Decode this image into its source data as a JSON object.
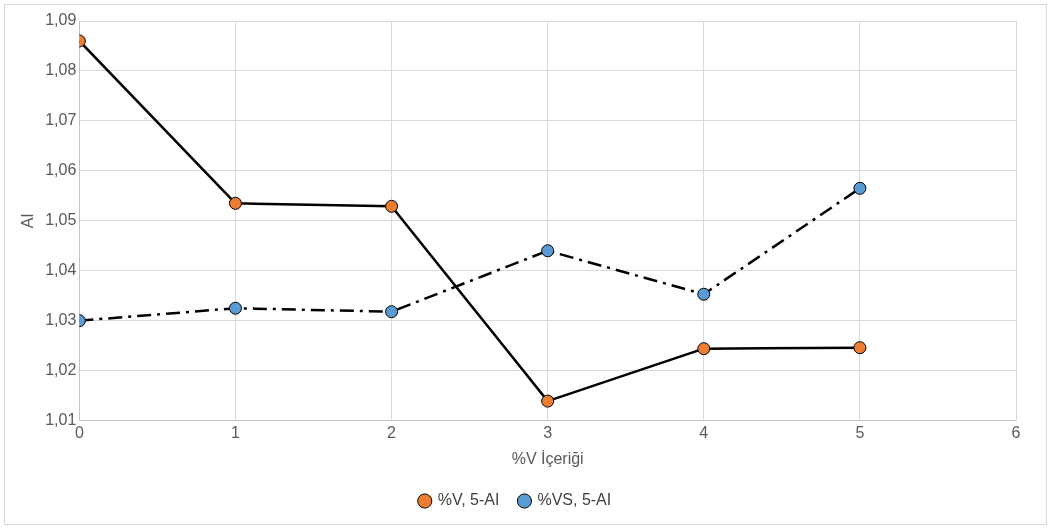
{
  "chart_data": {
    "type": "line",
    "xlabel": "%V İçeriği",
    "ylabel": "AI",
    "x": [
      0,
      1,
      2,
      3,
      4,
      5
    ],
    "series": [
      {
        "name": "%V, 5-AI",
        "color": "#ed7d31",
        "values": [
          1.086,
          1.0535,
          1.0529,
          1.0139,
          1.0244,
          1.0246
        ],
        "line_style": "solid"
      },
      {
        "name": "%VS, 5-AI",
        "color": "#5b9bd5",
        "values": [
          1.03,
          1.0325,
          1.0318,
          1.044,
          1.0353,
          1.0565
        ],
        "line_style": "dashed"
      }
    ],
    "xlim": [
      0,
      6
    ],
    "xticks": [
      0,
      1,
      2,
      3,
      4,
      5,
      6
    ],
    "ylim": [
      1.01,
      1.09
    ],
    "yticks": [
      {
        "value": 1.01,
        "label": "1,01"
      },
      {
        "value": 1.02,
        "label": "1,02"
      },
      {
        "value": 1.03,
        "label": "1,03"
      },
      {
        "value": 1.04,
        "label": "1,04"
      },
      {
        "value": 1.05,
        "label": "1,05"
      },
      {
        "value": 1.06,
        "label": "1,06"
      },
      {
        "value": 1.07,
        "label": "1,07"
      },
      {
        "value": 1.08,
        "label": "1,08"
      },
      {
        "value": 1.09,
        "label": "1,09"
      }
    ],
    "grid": true,
    "legend": "bottom",
    "marker": "circle"
  }
}
